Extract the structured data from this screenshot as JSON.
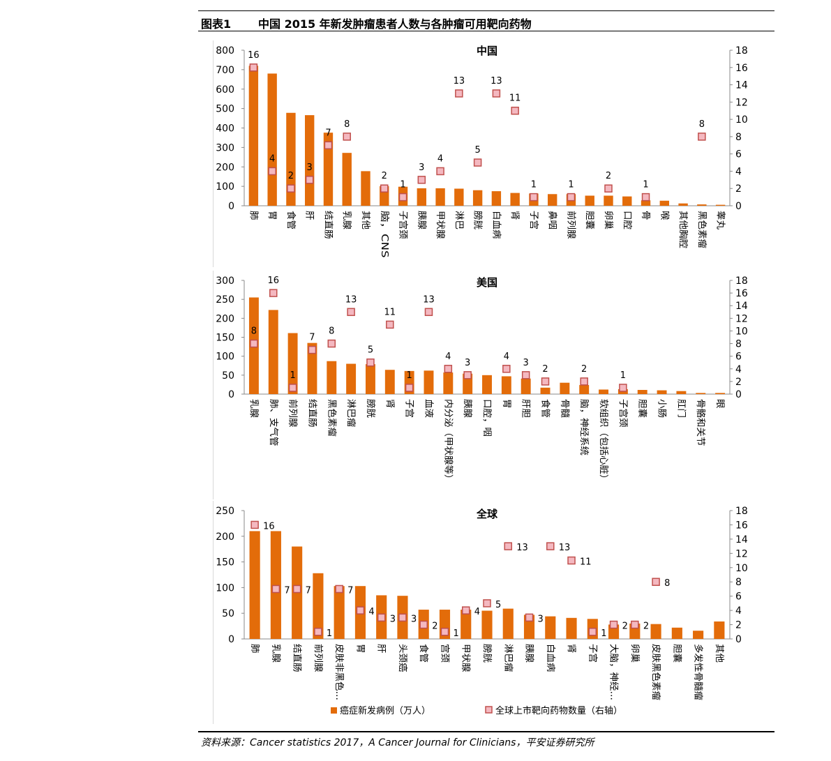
{
  "header": {
    "figure_no": "图表1",
    "title": "中国 2015 年新发肿瘤患者人数与各肿瘤可用靶向药物"
  },
  "source": "资料来源：Cancer statistics 2017，A Cancer Journal for Clinicians，平安证券研究所",
  "colors": {
    "bar": "#E36C0A",
    "marker_fill": "#F4B8C0",
    "marker_edge": "#C0504D"
  },
  "chart_data": [
    {
      "type": "bar",
      "title": "中国",
      "categories": [
        "肺",
        "胃",
        "食管",
        "肝",
        "结直肠",
        "乳腺",
        "其他",
        "脑，CNS",
        "子宫颈",
        "胰腺",
        "甲状腺",
        "淋巴",
        "膀胱",
        "白血病",
        "肾",
        "子宫",
        "鼻咽",
        "前列腺",
        "胆囊",
        "卵巢",
        "口腔",
        "骨",
        "喉",
        "其他胸腔",
        "黑色素瘤",
        "睾丸"
      ],
      "series": [
        {
          "axis": "left",
          "values": [
            720,
            680,
            478,
            466,
            376,
            272,
            178,
            101,
            98,
            90,
            90,
            88,
            80,
            75,
            66,
            63,
            60,
            60,
            52,
            52,
            48,
            28,
            26,
            12,
            7,
            5
          ]
        },
        {
          "axis": "right",
          "values": [
            16,
            4,
            2,
            3,
            7,
            8,
            null,
            2,
            1,
            3,
            4,
            13,
            5,
            13,
            11,
            1,
            null,
            1,
            null,
            2,
            null,
            1,
            null,
            null,
            8,
            null
          ]
        }
      ],
      "ylim": [
        0,
        800
      ],
      "y_ticks": [
        0,
        100,
        200,
        300,
        400,
        500,
        600,
        700,
        800
      ],
      "y2lim": [
        0,
        18
      ],
      "y2_ticks": [
        0,
        2,
        4,
        6,
        8,
        10,
        12,
        14,
        16,
        18
      ]
    },
    {
      "type": "bar",
      "title": "美国",
      "categories": [
        "乳腺",
        "肺、支气管",
        "前列腺",
        "结直肠",
        "黑色素瘤",
        "淋巴瘤",
        "膀胱",
        "肾",
        "子宫",
        "血液",
        "内分泌（甲状腺等）",
        "胰腺",
        "口腔，咽",
        "胃",
        "肝胆",
        "食管",
        "骨髓",
        "脑，神经系统",
        "软组织（包括心脏）",
        "子宫颈",
        "胆囊",
        "小肠",
        "肛门",
        "骨骼和关节",
        "眼"
      ],
      "series": [
        {
          "axis": "left",
          "values": [
            255,
            222,
            161,
            135,
            87,
            80,
            79,
            64,
            61,
            62,
            57,
            54,
            50,
            47,
            41,
            17,
            30,
            24,
            12,
            13,
            11,
            10,
            8,
            3,
            3
          ]
        },
        {
          "axis": "right",
          "values": [
            8,
            16,
            1,
            7,
            8,
            13,
            5,
            11,
            1,
            13,
            4,
            3,
            null,
            4,
            3,
            2,
            null,
            2,
            null,
            1,
            null,
            null,
            null,
            null,
            null
          ]
        }
      ],
      "ylim": [
        0,
        300
      ],
      "y_ticks": [
        0,
        50,
        100,
        150,
        200,
        250,
        300
      ],
      "y2lim": [
        0,
        18
      ],
      "y2_ticks": [
        0,
        2,
        4,
        6,
        8,
        10,
        12,
        14,
        16,
        18
      ]
    },
    {
      "type": "bar",
      "title": "全球",
      "categories": [
        "肺",
        "乳腺",
        "结直肠",
        "前列腺",
        "皮肤非黑色…",
        "胃",
        "肝",
        "头颈癌",
        "食管",
        "宫颈",
        "甲状腺",
        "膀胱",
        "淋巴瘤",
        "胰腺",
        "白血病",
        "肾",
        "子宫",
        "大脑，神经…",
        "卵巢",
        "皮肤黑色素瘤",
        "胆囊",
        "多发性骨髓瘤",
        "其他"
      ],
      "series": [
        {
          "axis": "left",
          "values": [
            210,
            210,
            180,
            128,
            103,
            103,
            85,
            84,
            57,
            57,
            57,
            55,
            59,
            47,
            44,
            41,
            39,
            28,
            30,
            29,
            22,
            16,
            34
          ]
        },
        {
          "axis": "right",
          "values": [
            16,
            7,
            7,
            1,
            7,
            4,
            3,
            3,
            2,
            1,
            4,
            5,
            13,
            3,
            13,
            11,
            1,
            2,
            2,
            8,
            null,
            null,
            null
          ]
        }
      ],
      "ylim": [
        0,
        250
      ],
      "y_ticks": [
        0,
        50,
        100,
        150,
        200,
        250
      ],
      "y2lim": [
        0,
        18
      ],
      "y2_ticks": [
        0,
        2,
        4,
        6,
        8,
        10,
        12,
        14,
        16,
        18
      ],
      "legend": {
        "bar_label": "癌症新发病例（万人）",
        "marker_label": "全球上市靶向药物数量（右轴）",
        "position": "bottom-center"
      }
    }
  ]
}
